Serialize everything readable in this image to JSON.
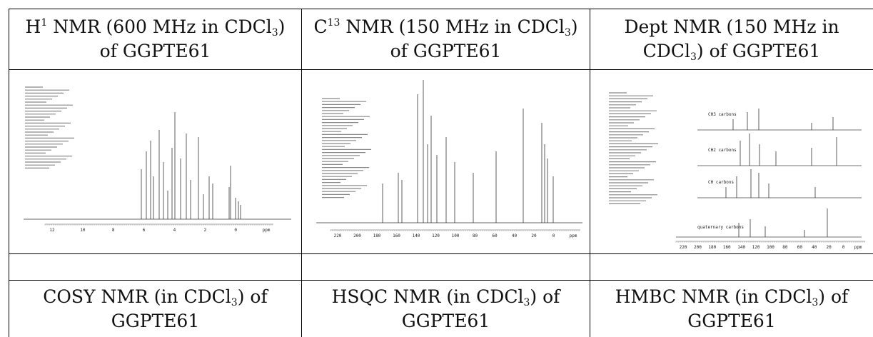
{
  "table": {
    "rows": [
      [
        [
          "H",
          "1",
          " NMR (600 MHz in CDCl",
          "3",
          ") of GGPTE61"
        ],
        [
          "C",
          "13",
          " NMR (150 MHz in CDCl",
          "3",
          ") of GGPTE61"
        ],
        [
          "Dept NMR (150 MHz in CDCl",
          "3",
          ") of GGPTE61"
        ]
      ],
      [
        [
          "COSY NMR (in CDCl",
          "3",
          ") of GGPTE61"
        ],
        [
          "HSQC NMR (in CDCl",
          "3",
          ") of GGPTE61"
        ],
        [
          "HMBC NMR (in CDCl",
          "3",
          ") of GGPTE61"
        ]
      ]
    ]
  },
  "spectra": [
    {
      "axis": [
        "12",
        "10",
        "8",
        "6",
        "4",
        "2",
        "0",
        "ppm"
      ]
    },
    {
      "axis": [
        "220",
        "200",
        "180",
        "160",
        "140",
        "120",
        "100",
        "80",
        "60",
        "40",
        "20",
        "0",
        "ppm"
      ]
    },
    {
      "axis": [
        "220",
        "200",
        "180",
        "160",
        "140",
        "120",
        "100",
        "80",
        "60",
        "40",
        "20",
        "0",
        "ppm"
      ],
      "traces": [
        "CH3 carbons",
        "CH2 carbons",
        "CH carbons",
        "quaternary carbons"
      ]
    }
  ]
}
